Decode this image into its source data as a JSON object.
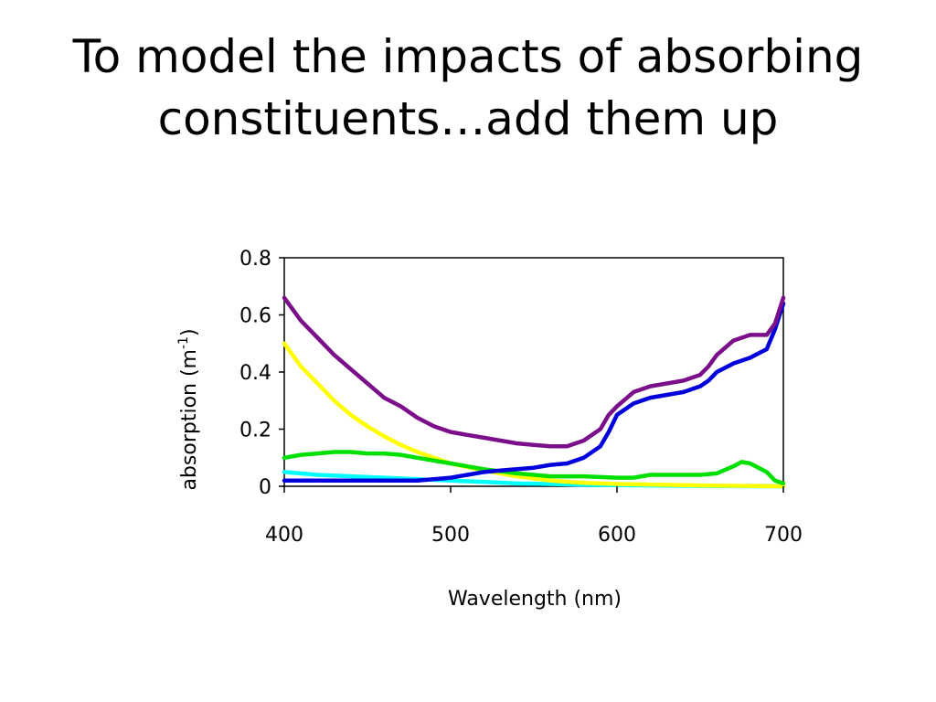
{
  "slide": {
    "title_line1": "To model the impacts of absorbing",
    "title_line2": "constituents…add them up"
  },
  "chart_data": {
    "type": "line",
    "xlabel": "Wavelength (nm)",
    "ylabel_main": "absorption (m",
    "ylabel_sup": "-1",
    "ylabel_close": ")",
    "xlim": [
      400,
      700
    ],
    "ylim": [
      0,
      0.8
    ],
    "xticks": [
      400,
      500,
      600,
      700
    ],
    "yticks": [
      0,
      0.2,
      0.4,
      0.6,
      0.8
    ],
    "xtick_labels": [
      "400",
      "500",
      "600",
      "700"
    ],
    "ytick_labels": [
      "0",
      "0.2",
      "0.4",
      "0.6",
      "0.8"
    ],
    "grid": false,
    "legend": "none",
    "series": [
      {
        "color": "#00ffff",
        "x": [
          400,
          420,
          440,
          460,
          480,
          500,
          520,
          540,
          560,
          580,
          600,
          620,
          640,
          660,
          680,
          700
        ],
        "y": [
          0.05,
          0.04,
          0.035,
          0.03,
          0.025,
          0.02,
          0.015,
          0.01,
          0.008,
          0.005,
          0.004,
          0.003,
          0.002,
          0.001,
          0.0,
          0.0
        ]
      },
      {
        "color": "#ffff00",
        "x": [
          400,
          410,
          420,
          430,
          440,
          450,
          460,
          470,
          480,
          490,
          500,
          520,
          540,
          560,
          580,
          600,
          650,
          700
        ],
        "y": [
          0.5,
          0.42,
          0.36,
          0.3,
          0.25,
          0.21,
          0.175,
          0.145,
          0.12,
          0.1,
          0.08,
          0.055,
          0.035,
          0.02,
          0.012,
          0.008,
          0.003,
          0.0
        ]
      },
      {
        "color": "#00e000",
        "x": [
          400,
          410,
          420,
          430,
          440,
          450,
          460,
          470,
          480,
          490,
          500,
          520,
          540,
          560,
          580,
          600,
          610,
          620,
          640,
          650,
          660,
          670,
          675,
          680,
          690,
          695,
          700
        ],
        "y": [
          0.1,
          0.11,
          0.115,
          0.12,
          0.12,
          0.115,
          0.115,
          0.11,
          0.1,
          0.09,
          0.08,
          0.06,
          0.045,
          0.035,
          0.035,
          0.03,
          0.03,
          0.04,
          0.04,
          0.04,
          0.045,
          0.07,
          0.085,
          0.08,
          0.05,
          0.02,
          0.01
        ]
      },
      {
        "color": "#0000dd",
        "x": [
          400,
          420,
          440,
          460,
          480,
          490,
          500,
          510,
          520,
          530,
          540,
          550,
          560,
          570,
          580,
          590,
          595,
          600,
          610,
          620,
          630,
          640,
          650,
          655,
          660,
          670,
          680,
          690,
          695,
          700
        ],
        "y": [
          0.02,
          0.02,
          0.02,
          0.02,
          0.02,
          0.025,
          0.03,
          0.04,
          0.05,
          0.055,
          0.06,
          0.065,
          0.075,
          0.08,
          0.1,
          0.14,
          0.19,
          0.25,
          0.29,
          0.31,
          0.32,
          0.33,
          0.35,
          0.37,
          0.4,
          0.43,
          0.45,
          0.48,
          0.55,
          0.64
        ]
      },
      {
        "color": "#7b0f8a",
        "x": [
          400,
          410,
          420,
          430,
          440,
          450,
          460,
          470,
          480,
          490,
          500,
          510,
          520,
          530,
          540,
          550,
          560,
          570,
          580,
          590,
          595,
          600,
          610,
          620,
          630,
          640,
          650,
          655,
          660,
          670,
          680,
          690,
          695,
          700
        ],
        "y": [
          0.66,
          0.58,
          0.52,
          0.46,
          0.41,
          0.36,
          0.31,
          0.28,
          0.24,
          0.21,
          0.19,
          0.18,
          0.17,
          0.16,
          0.15,
          0.145,
          0.14,
          0.14,
          0.16,
          0.2,
          0.25,
          0.28,
          0.33,
          0.35,
          0.36,
          0.37,
          0.39,
          0.42,
          0.46,
          0.51,
          0.53,
          0.53,
          0.57,
          0.66
        ]
      }
    ]
  }
}
